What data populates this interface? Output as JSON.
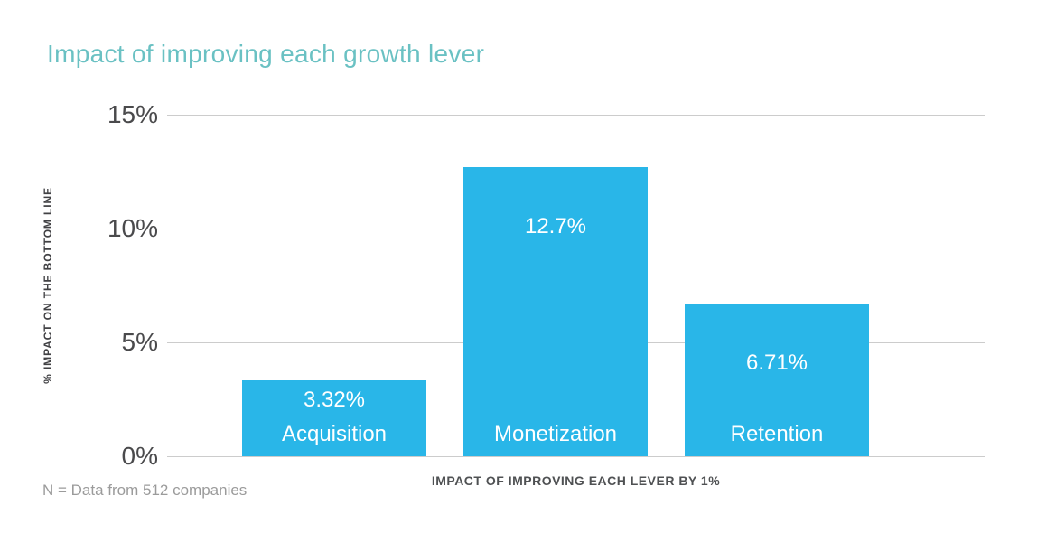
{
  "footnote": "N = Data from 512 companies",
  "chart_data": {
    "type": "bar",
    "title": "Impact of improving each growth lever",
    "categories": [
      "Acquisition",
      "Monetization",
      "Retention"
    ],
    "values": [
      3.32,
      12.7,
      6.71
    ],
    "value_labels": [
      "3.32%",
      "12.7%",
      "6.71%"
    ],
    "xlabel": "IMPACT OF IMPROVING EACH LEVER BY 1%",
    "ylabel": "% IMPACT ON THE BOTTOM LINE",
    "ylim": [
      0,
      15
    ],
    "yticks": [
      {
        "label": "0%",
        "value": 0
      },
      {
        "label": "5%",
        "value": 5
      },
      {
        "label": "10%",
        "value": 10
      },
      {
        "label": "15%",
        "value": 15
      }
    ],
    "grid": true,
    "legend": false,
    "bar_color": "#29b6e8",
    "title_color": "#6ac1c3"
  }
}
